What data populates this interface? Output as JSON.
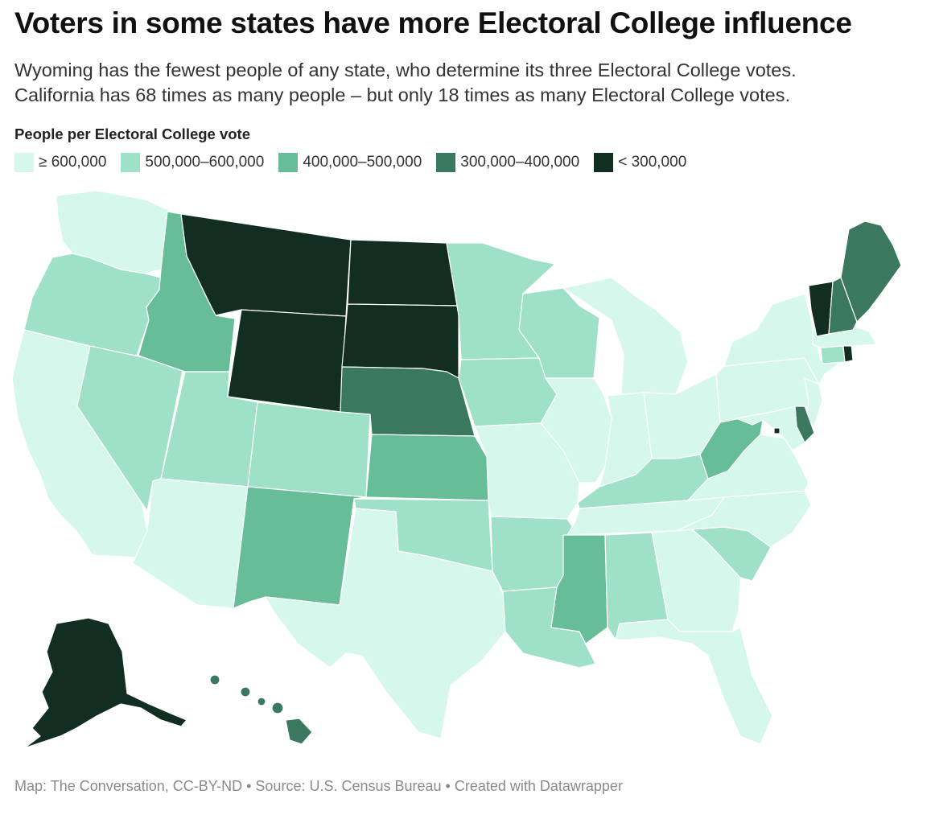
{
  "title": "Voters in some states have more Electoral College influence",
  "subtitle": {
    "line1": "Wyoming has the fewest people of any state, who determine its three Electoral College votes.",
    "line2": "California has 68 times as many people – but only 18 times as many Electoral College votes."
  },
  "legend": {
    "title": "People per Electoral College vote",
    "items": [
      {
        "label": "≥ 600,000",
        "color": "#d6f8ec"
      },
      {
        "label": "500,000–600,000",
        "color": "#9fe0c8"
      },
      {
        "label": "400,000–500,000",
        "color": "#66bd98"
      },
      {
        "label": "300,000–400,000",
        "color": "#3b7860"
      },
      {
        "label": "< 300,000",
        "color": "#122e23"
      }
    ]
  },
  "map": {
    "states": [
      {
        "name": "Washington",
        "bin": 0
      },
      {
        "name": "Oregon",
        "bin": 1
      },
      {
        "name": "California",
        "bin": 0
      },
      {
        "name": "Idaho",
        "bin": 2
      },
      {
        "name": "Nevada",
        "bin": 1
      },
      {
        "name": "Montana",
        "bin": 4
      },
      {
        "name": "Wyoming",
        "bin": 4
      },
      {
        "name": "Utah",
        "bin": 1
      },
      {
        "name": "Arizona",
        "bin": 0
      },
      {
        "name": "Colorado",
        "bin": 1
      },
      {
        "name": "New Mexico",
        "bin": 2
      },
      {
        "name": "North Dakota",
        "bin": 4
      },
      {
        "name": "South Dakota",
        "bin": 4
      },
      {
        "name": "Nebraska",
        "bin": 3
      },
      {
        "name": "Kansas",
        "bin": 2
      },
      {
        "name": "Oklahoma",
        "bin": 1
      },
      {
        "name": "Texas",
        "bin": 0
      },
      {
        "name": "Minnesota",
        "bin": 1
      },
      {
        "name": "Iowa",
        "bin": 1
      },
      {
        "name": "Missouri",
        "bin": 0
      },
      {
        "name": "Arkansas",
        "bin": 1
      },
      {
        "name": "Louisiana",
        "bin": 1
      },
      {
        "name": "Wisconsin",
        "bin": 1
      },
      {
        "name": "Illinois",
        "bin": 0
      },
      {
        "name": "Michigan",
        "bin": 0
      },
      {
        "name": "Indiana",
        "bin": 0
      },
      {
        "name": "Ohio",
        "bin": 0
      },
      {
        "name": "Kentucky",
        "bin": 1
      },
      {
        "name": "Tennessee",
        "bin": 0
      },
      {
        "name": "Mississippi",
        "bin": 2
      },
      {
        "name": "Alabama",
        "bin": 1
      },
      {
        "name": "Georgia",
        "bin": 0
      },
      {
        "name": "Florida",
        "bin": 0
      },
      {
        "name": "South Carolina",
        "bin": 1
      },
      {
        "name": "North Carolina",
        "bin": 0
      },
      {
        "name": "Virginia",
        "bin": 0
      },
      {
        "name": "West Virginia",
        "bin": 2
      },
      {
        "name": "Pennsylvania",
        "bin": 0
      },
      {
        "name": "New York",
        "bin": 0
      },
      {
        "name": "New Jersey",
        "bin": 0
      },
      {
        "name": "Delaware",
        "bin": 3
      },
      {
        "name": "Maryland",
        "bin": 0
      },
      {
        "name": "District of Columbia",
        "bin": 4
      },
      {
        "name": "Connecticut",
        "bin": 1
      },
      {
        "name": "Rhode Island",
        "bin": 4
      },
      {
        "name": "Massachusetts",
        "bin": 0
      },
      {
        "name": "Vermont",
        "bin": 4
      },
      {
        "name": "New Hampshire",
        "bin": 3
      },
      {
        "name": "Maine",
        "bin": 3
      },
      {
        "name": "Alaska",
        "bin": 4
      },
      {
        "name": "Hawaii",
        "bin": 3
      }
    ]
  },
  "footer": {
    "text": "Map: The Conversation, CC-BY-ND • Source: U.S. Census Bureau • Created with Datawrapper"
  }
}
